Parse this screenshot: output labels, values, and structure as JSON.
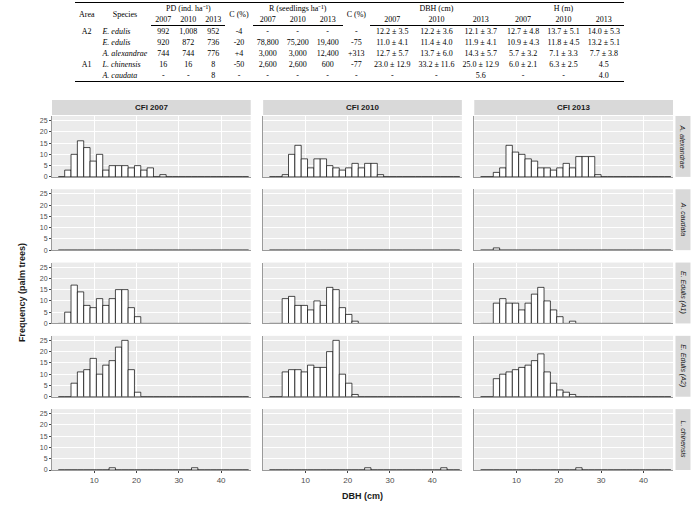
{
  "table": {
    "header": [
      "Area",
      "Species",
      "PD (ind. ha⁻¹)",
      "C (%)",
      "R (seedlings ha⁻¹)",
      "C (%)",
      "DBH (cm)",
      "H (m)"
    ],
    "years": [
      "2007",
      "2010",
      "2013"
    ],
    "rows": [
      [
        "A2",
        "E. edulis",
        "992",
        "1,008",
        "952",
        "-4",
        "-",
        "-",
        "-",
        "-",
        "12.2 ± 3.5",
        "12.2 ± 3.6",
        "12.1 ± 3.7",
        "12.7 ± 4.8",
        "13.7 ± 5.1",
        "14.0 ± 5.3"
      ],
      [
        null,
        "E. edulis",
        "920",
        "872",
        "736",
        "-20",
        "78,800",
        "75,200",
        "19,400",
        "-75",
        "11.0 ± 4.1",
        "11.4 ± 4.0",
        "11.9 ± 4.1",
        "10.9 ± 4.3",
        "11.8 ± 4.5",
        "13.2 ± 5.1"
      ],
      [
        null,
        "A. alexandrae",
        "744",
        "744",
        "776",
        "+4",
        "3,000",
        "3,000",
        "12,400",
        "+313",
        "12.7 ± 5.7",
        "13.7 ± 6.0",
        "14.3 ± 5.7",
        "5.7 ± 3.2",
        "7.1 ± 3.3",
        "7.7 ± 3.8"
      ],
      [
        "A1",
        "L. chinensis",
        "16",
        "16",
        "8",
        "-50",
        "2,600",
        "2,600",
        "600",
        "-77",
        "23.0 ± 12.9",
        "33.2 ± 11.6",
        "25.0 ± 12.9",
        "6.0 ± 2.1",
        "6.3 ± 2.5",
        "4.5"
      ],
      [
        null,
        "A. caudata",
        "-",
        "-",
        "8",
        "-",
        "-",
        "-",
        "-",
        "-",
        "-",
        "-",
        "5.6",
        "-",
        "-",
        "4.0"
      ]
    ]
  },
  "chart_data": {
    "type": "histogram",
    "x_label": "DBH (cm)",
    "y_label": "Frequency (palm trees)",
    "columns": [
      "CFI 2007",
      "CFI 2010",
      "CFI 2013"
    ],
    "rows": [
      "A. alexandrae",
      "A. caudata",
      "E. Edulis (A1)",
      "E. Edulis (A2)",
      "L. chinensis"
    ],
    "bins": [
      1.5,
      3,
      4.5,
      6,
      7.5,
      9,
      10.5,
      12,
      13.5,
      15,
      16.5,
      18,
      19.5,
      21,
      22.5,
      24,
      25.5,
      27,
      28.5,
      30,
      31.5,
      33,
      34.5,
      36,
      37.5,
      39,
      40.5,
      42,
      43.5,
      45,
      46.5
    ],
    "counts": [
      [
        [
          0,
          3,
          10,
          16,
          13,
          7,
          10,
          3,
          5,
          5,
          5,
          4,
          5,
          3,
          4,
          0,
          1,
          0,
          0,
          0,
          0,
          0,
          0,
          0,
          0,
          0,
          0,
          0,
          0,
          0
        ],
        [
          0,
          0,
          1,
          10,
          14,
          8,
          4,
          8,
          8,
          5,
          4,
          3,
          4,
          6,
          4,
          6,
          6,
          1,
          0,
          0,
          0,
          0,
          0,
          0,
          0,
          0,
          0,
          0,
          0,
          0
        ],
        [
          0,
          0,
          2,
          4,
          14,
          11,
          10,
          8,
          7,
          4,
          4,
          3,
          4,
          6,
          4,
          9,
          9,
          9,
          1,
          0,
          0,
          0,
          0,
          0,
          0,
          0,
          0,
          0,
          0,
          0
        ]
      ],
      [
        [
          0,
          0,
          0,
          0,
          0,
          0,
          0,
          0,
          0,
          0,
          0,
          0,
          0,
          0,
          0,
          0,
          0,
          0,
          0,
          0,
          0,
          0,
          0,
          0,
          0,
          0,
          0,
          0,
          0,
          0
        ],
        [
          0,
          0,
          0,
          0,
          0,
          0,
          0,
          0,
          0,
          0,
          0,
          0,
          0,
          0,
          0,
          0,
          0,
          0,
          0,
          0,
          0,
          0,
          0,
          0,
          0,
          0,
          0,
          0,
          0,
          0
        ],
        [
          0,
          0,
          1,
          0,
          0,
          0,
          0,
          0,
          0,
          0,
          0,
          0,
          0,
          0,
          0,
          0,
          0,
          0,
          0,
          0,
          0,
          0,
          0,
          0,
          0,
          0,
          0,
          0,
          0,
          0
        ]
      ],
      [
        [
          0,
          5,
          17,
          14,
          8,
          7,
          11,
          8,
          11,
          15,
          15,
          7,
          3,
          0,
          0,
          0,
          0,
          0,
          0,
          0,
          0,
          0,
          0,
          0,
          0,
          0,
          0,
          0,
          0,
          0
        ],
        [
          0,
          0,
          11,
          12,
          8,
          8,
          6,
          10,
          8,
          16,
          15,
          7,
          4,
          1,
          0,
          0,
          0,
          0,
          0,
          0,
          0,
          0,
          0,
          0,
          0,
          0,
          0,
          0,
          0,
          0
        ],
        [
          0,
          0,
          9,
          11,
          9,
          9,
          6,
          9,
          13,
          16,
          10,
          6,
          3,
          0,
          1,
          0,
          0,
          0,
          0,
          0,
          0,
          0,
          0,
          0,
          0,
          0,
          0,
          0,
          0,
          0
        ]
      ],
      [
        [
          0,
          0,
          6,
          11,
          12,
          17,
          10,
          14,
          16,
          22,
          25,
          12,
          2,
          0,
          0,
          0,
          0,
          0,
          0,
          0,
          0,
          0,
          0,
          0,
          0,
          0,
          0,
          0,
          0,
          0
        ],
        [
          0,
          0,
          11,
          12,
          12,
          11,
          14,
          13,
          13,
          20,
          25,
          10,
          6,
          1,
          0,
          0,
          0,
          0,
          0,
          0,
          0,
          0,
          0,
          0,
          0,
          0,
          0,
          0,
          0,
          0
        ],
        [
          0,
          0,
          8,
          10,
          11,
          12,
          13,
          14,
          16,
          19,
          11,
          6,
          3,
          2,
          1,
          0,
          0,
          0,
          0,
          0,
          0,
          0,
          0,
          0,
          0,
          0,
          0,
          0,
          0,
          0
        ]
      ],
      [
        [
          0,
          0,
          0,
          0,
          0,
          0,
          0,
          0,
          1,
          0,
          0,
          0,
          0,
          0,
          0,
          0,
          0,
          0,
          0,
          0,
          0,
          1,
          0,
          0,
          0,
          0,
          0,
          0,
          0,
          0
        ],
        [
          0,
          0,
          0,
          0,
          0,
          0,
          0,
          0,
          0,
          0,
          0,
          0,
          0,
          0,
          0,
          1,
          0,
          0,
          0,
          0,
          0,
          0,
          0,
          0,
          0,
          0,
          0,
          1,
          0,
          0
        ],
        [
          0,
          0,
          0,
          0,
          0,
          0,
          0,
          0,
          0,
          0,
          0,
          0,
          0,
          0,
          0,
          1,
          0,
          0,
          0,
          0,
          0,
          0,
          0,
          0,
          0,
          0,
          0,
          0,
          0,
          0
        ]
      ]
    ],
    "xlim": [
      0,
      47
    ],
    "xticks": [
      10,
      20,
      30,
      40
    ],
    "ylim": [
      0,
      27
    ],
    "yticks": [
      0,
      5,
      10,
      15,
      20,
      25
    ],
    "color": "#ffffff",
    "grid": true
  }
}
